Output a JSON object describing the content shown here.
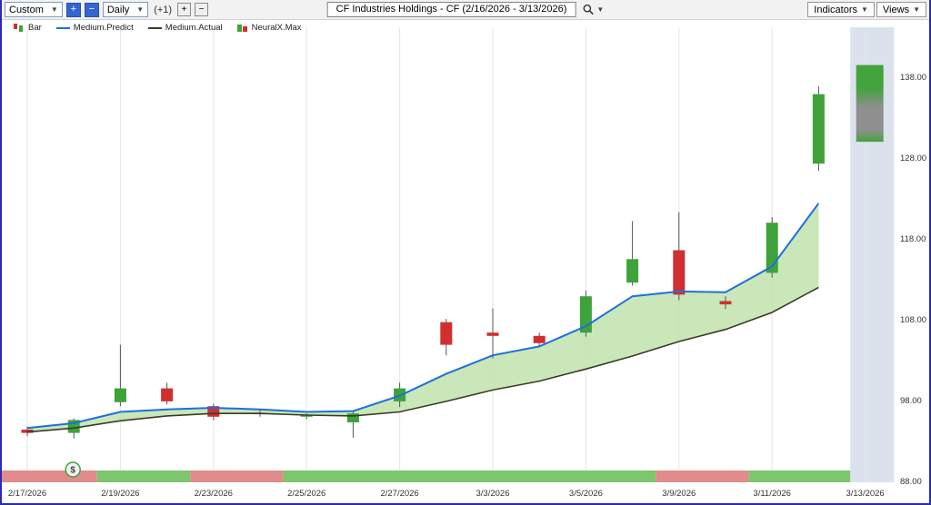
{
  "toolbar": {
    "range_select": "Custom",
    "zoom_in_label": "+",
    "zoom_out_label": "−",
    "period_select": "Daily",
    "offset_label": "(+1)",
    "plus_label": "+",
    "minus_label": "−",
    "title": "CF Industries Holdings - CF (2/16/2026 - 3/13/2026)",
    "indicators_label": "Indicators",
    "views_label": "Views"
  },
  "legend": {
    "items": [
      {
        "label": "Bar"
      },
      {
        "label": "Medium.Predict"
      },
      {
        "label": "Medium.Actual"
      },
      {
        "label": "NeuralX.Max"
      }
    ]
  },
  "chart_data": {
    "type": "candlestick",
    "title": "CF Industries Holdings - CF",
    "date_range": "2/16/2026 - 3/13/2026",
    "colors": {
      "up": "#3da33a",
      "down": "#d12f2f",
      "wick": "#555555",
      "predict_line": "#1f6fe0",
      "actual_line": "#3b3b25",
      "band_fill": "#bfe3ac",
      "future_zone": "#dbe2ec",
      "grid": "#e5e5e5",
      "strip_bull": "#7dc66d",
      "strip_bear": "#e08c8c"
    },
    "y_axis": {
      "min": 88,
      "max": 140,
      "ticks": [
        {
          "value": 138,
          "label": "138.00"
        },
        {
          "value": 128,
          "label": "128.00"
        },
        {
          "value": 118,
          "label": "118.00"
        },
        {
          "value": 108,
          "label": "108.00"
        },
        {
          "value": 98,
          "label": "98.00"
        },
        {
          "value": 88,
          "label": "88.00"
        }
      ]
    },
    "x_axis": {
      "labels": [
        {
          "day": 0,
          "label": "2/17/2026"
        },
        {
          "day": 2,
          "label": "2/19/2026"
        },
        {
          "day": 4,
          "label": "2/23/2026"
        },
        {
          "day": 6,
          "label": "2/25/2026"
        },
        {
          "day": 8,
          "label": "2/27/2026"
        },
        {
          "day": 10,
          "label": "3/3/2026"
        },
        {
          "day": 12,
          "label": "3/5/2026"
        },
        {
          "day": 14,
          "label": "3/9/2026"
        },
        {
          "day": 16,
          "label": "3/11/2026"
        },
        {
          "day": 18,
          "label": "3/13/2026"
        }
      ]
    },
    "candles": [
      {
        "date": "2/17/2026",
        "open": 94.4,
        "high": 94.8,
        "low": 93.6,
        "close": 94.0
      },
      {
        "date": "2/18/2026",
        "open": 94.0,
        "high": 95.8,
        "low": 93.3,
        "close": 95.6
      },
      {
        "date": "2/19/2026",
        "open": 97.8,
        "high": 104.9,
        "low": 97.3,
        "close": 99.5
      },
      {
        "date": "2/20/2026",
        "open": 99.5,
        "high": 100.2,
        "low": 97.5,
        "close": 97.9
      },
      {
        "date": "2/23/2026",
        "open": 97.3,
        "high": 97.6,
        "low": 95.6,
        "close": 96.0
      },
      {
        "date": "2/24/2026",
        "open": 96.5,
        "high": 96.9,
        "low": 96.0,
        "close": 96.3
      },
      {
        "date": "2/25/2026",
        "open": 96.0,
        "high": 96.4,
        "low": 95.7,
        "close": 96.2
      },
      {
        "date": "2/26/2026",
        "open": 95.3,
        "high": 96.6,
        "low": 93.4,
        "close": 96.4
      },
      {
        "date": "2/27/2026",
        "open": 97.9,
        "high": 100.2,
        "low": 97.2,
        "close": 99.5
      },
      {
        "date": "3/2/2026",
        "open": 107.7,
        "high": 108.1,
        "low": 103.6,
        "close": 104.9
      },
      {
        "date": "3/3/2026",
        "open": 106.4,
        "high": 109.4,
        "low": 103.2,
        "close": 106.0
      },
      {
        "date": "3/4/2026",
        "open": 106.0,
        "high": 106.4,
        "low": 104.6,
        "close": 105.1
      },
      {
        "date": "3/5/2026",
        "open": 106.4,
        "high": 111.6,
        "low": 105.9,
        "close": 110.9
      },
      {
        "date": "3/6/2026",
        "open": 112.6,
        "high": 120.2,
        "low": 112.2,
        "close": 115.5
      },
      {
        "date": "3/9/2026",
        "open": 116.6,
        "high": 121.3,
        "low": 110.4,
        "close": 111.1
      },
      {
        "date": "3/10/2026",
        "open": 110.3,
        "high": 110.9,
        "low": 109.3,
        "close": 109.9
      },
      {
        "date": "3/11/2026",
        "open": 113.8,
        "high": 120.7,
        "low": 113.2,
        "close": 120.0
      },
      {
        "date": "3/12/2026",
        "open": 127.3,
        "high": 136.9,
        "low": 126.4,
        "close": 135.9
      }
    ],
    "series": [
      {
        "name": "Medium.Predict",
        "values": [
          94.6,
          95.2,
          96.6,
          96.9,
          97.1,
          96.9,
          96.6,
          96.7,
          98.6,
          101.3,
          103.6,
          104.7,
          107.2,
          110.9,
          111.5,
          111.4,
          114.6,
          122.4
        ]
      },
      {
        "name": "Medium.Actual",
        "values": [
          94.1,
          94.6,
          95.5,
          96.1,
          96.4,
          96.4,
          96.2,
          96.1,
          96.6,
          97.9,
          99.3,
          100.4,
          101.9,
          103.5,
          105.3,
          106.8,
          108.9,
          112.0
        ]
      }
    ],
    "prediction_bar": {
      "name": "NeuralX.Max",
      "day": 18.1,
      "high": 139.5,
      "low": 130.0,
      "color_edge": "#43a33c",
      "color_mid": "#8f8f8f"
    },
    "signal_strip": [
      {
        "state": "bear",
        "from_day": -0.55,
        "to_day": 1.5
      },
      {
        "state": "bull",
        "from_day": 1.5,
        "to_day": 3.5
      },
      {
        "state": "bear",
        "from_day": 3.5,
        "to_day": 5.5
      },
      {
        "state": "bull",
        "from_day": 5.5,
        "to_day": 13.5
      },
      {
        "state": "bear",
        "from_day": 13.5,
        "to_day": 15.5
      },
      {
        "state": "bull",
        "from_day": 15.5,
        "to_day": 17.68
      }
    ],
    "future_zone": {
      "from_day": 17.68,
      "to_day": 18.62
    },
    "dollar_badge": {
      "symbol": "$",
      "day": 0.98
    }
  }
}
